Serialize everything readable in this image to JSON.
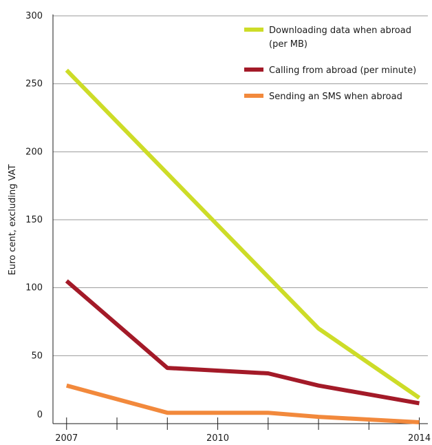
{
  "chart_data": {
    "type": "line",
    "title": "",
    "xlabel": "",
    "ylabel": "Euro cent, excluding VAT",
    "x": [
      2007,
      2008,
      2009,
      2010,
      2011,
      2012,
      2013,
      2014
    ],
    "x_tick_labels": [
      {
        "x": 2007,
        "label": "2007"
      },
      {
        "x": 2010,
        "label": "2010"
      },
      {
        "x": 2014,
        "label": "2014"
      }
    ],
    "ylim": [
      0,
      300
    ],
    "y_ticks": [
      0,
      50,
      100,
      150,
      200,
      250,
      300
    ],
    "grid": "horizontal",
    "legend": {
      "position": "top-right",
      "entries": [
        {
          "lines": [
            "Downloading data when abroad",
            "(per MB)"
          ],
          "series": 0
        },
        {
          "lines": [
            "Calling from abroad (per minute)"
          ],
          "series": 1
        },
        {
          "lines": [
            "Sending an SMS when abroad"
          ],
          "series": 2
        }
      ]
    },
    "series": [
      {
        "name": "Downloading data when abroad (per MB)",
        "color": "#cddc28",
        "points": [
          [
            2007,
            260
          ],
          [
            2012,
            70
          ],
          [
            2014,
            19
          ]
        ]
      },
      {
        "name": "Calling from abroad (per minute)",
        "color": "#a31a28",
        "points": [
          [
            2007,
            105
          ],
          [
            2009,
            41
          ],
          [
            2011,
            37
          ],
          [
            2012,
            28
          ],
          [
            2014,
            15
          ]
        ]
      },
      {
        "name": "Sending an SMS when abroad",
        "color": "#f2893c",
        "points": [
          [
            2007,
            28
          ],
          [
            2009,
            8
          ],
          [
            2011,
            8
          ],
          [
            2012,
            5
          ],
          [
            2014,
            1
          ]
        ]
      }
    ]
  }
}
